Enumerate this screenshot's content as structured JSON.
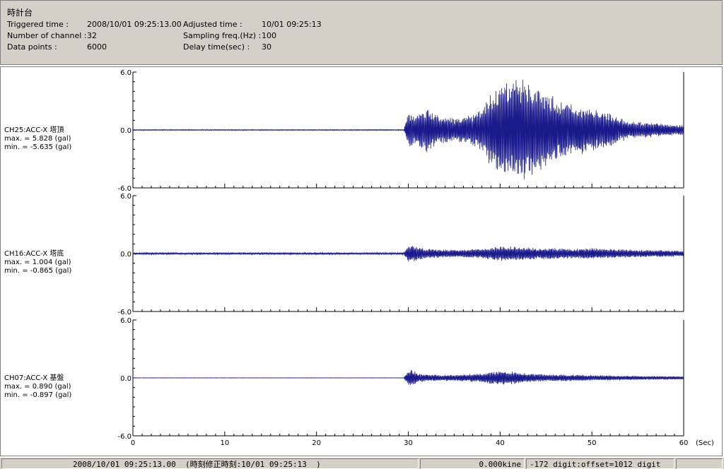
{
  "header": {
    "title": "時計台",
    "triggered_label": "Triggered time :",
    "triggered_value": "2008/10/01 09:25:13.00",
    "adjusted_label": "Adjusted time :",
    "adjusted_value": "10/01 09:25:13",
    "channels_label": "Number of channel :",
    "channels_value": "32",
    "sampling_label": "Sampling freq.(Hz) :",
    "sampling_value": "100",
    "points_label": "Data points :",
    "points_value": "6000",
    "delay_label": "Delay time(sec) :",
    "delay_value": "30"
  },
  "status": {
    "datetime": "2008/10/01 09:25:13.00  (時刻修正時刻:10/01 09:25:13  )",
    "kine": "0.000kine",
    "digit": "-172 digit:offset=1012 digit"
  },
  "chart_data": {
    "type": "line",
    "xlabel": "(Sec)",
    "xlim": [
      0,
      60
    ],
    "xticks": [
      "0",
      "10",
      "20",
      "30",
      "40",
      "50",
      "60"
    ],
    "panels": [
      {
        "name": "CH25:ACC-X 塔頂",
        "max_text": "max. = 5.828 (gal)",
        "min_text": "min. = -5.635 (gal)",
        "ylim": [
          -6.0,
          6.0
        ],
        "yticks": [
          "6.0",
          "0.0",
          "-6.0"
        ],
        "max": 5.828,
        "min": -5.635,
        "envelope": {
          "t": [
            0,
            29.5,
            30,
            31,
            32,
            33,
            35,
            37,
            38,
            39,
            40,
            41,
            42,
            43,
            44,
            46,
            48,
            50,
            52,
            54,
            56,
            58,
            60
          ],
          "amp": [
            0.05,
            0.05,
            1.8,
            1.7,
            2.4,
            1.6,
            1.2,
            1.6,
            2.3,
            3.8,
            4.8,
            5.6,
            5.7,
            5.2,
            4.6,
            3.4,
            2.6,
            2.4,
            1.8,
            0.9,
            0.8,
            0.6,
            0.5
          ]
        }
      },
      {
        "name": "CH16:ACC-X 塔底",
        "max_text": "max. = 1.004 (gal)",
        "min_text": "min. = -0.865 (gal)",
        "ylim": [
          -6.0,
          6.0
        ],
        "yticks": [
          "6.0",
          "0.0",
          "-6.0"
        ],
        "max": 1.004,
        "min": -0.865,
        "envelope": {
          "t": [
            0,
            29.5,
            30,
            31,
            32,
            35,
            38,
            40,
            42,
            44,
            46,
            48,
            50,
            52,
            55,
            58,
            60
          ],
          "amp": [
            0.1,
            0.1,
            0.9,
            0.8,
            0.5,
            0.4,
            0.5,
            0.8,
            0.7,
            0.6,
            0.6,
            0.5,
            0.6,
            0.5,
            0.4,
            0.35,
            0.3
          ]
        }
      },
      {
        "name": "CH07:ACC-X 基盤",
        "max_text": "max. = 0.890 (gal)",
        "min_text": "min. = -0.897 (gal)",
        "ylim": [
          -6.0,
          6.0
        ],
        "yticks": [
          "6.0",
          "0.0",
          "-6.0"
        ],
        "max": 0.89,
        "min": -0.897,
        "envelope": {
          "t": [
            0,
            29.5,
            30,
            30.5,
            31,
            32,
            35,
            38,
            40,
            42,
            44,
            46,
            50,
            55,
            60
          ],
          "amp": [
            0.02,
            0.02,
            0.85,
            0.85,
            0.5,
            0.35,
            0.3,
            0.5,
            0.8,
            0.6,
            0.4,
            0.35,
            0.3,
            0.2,
            0.15
          ]
        }
      }
    ]
  }
}
